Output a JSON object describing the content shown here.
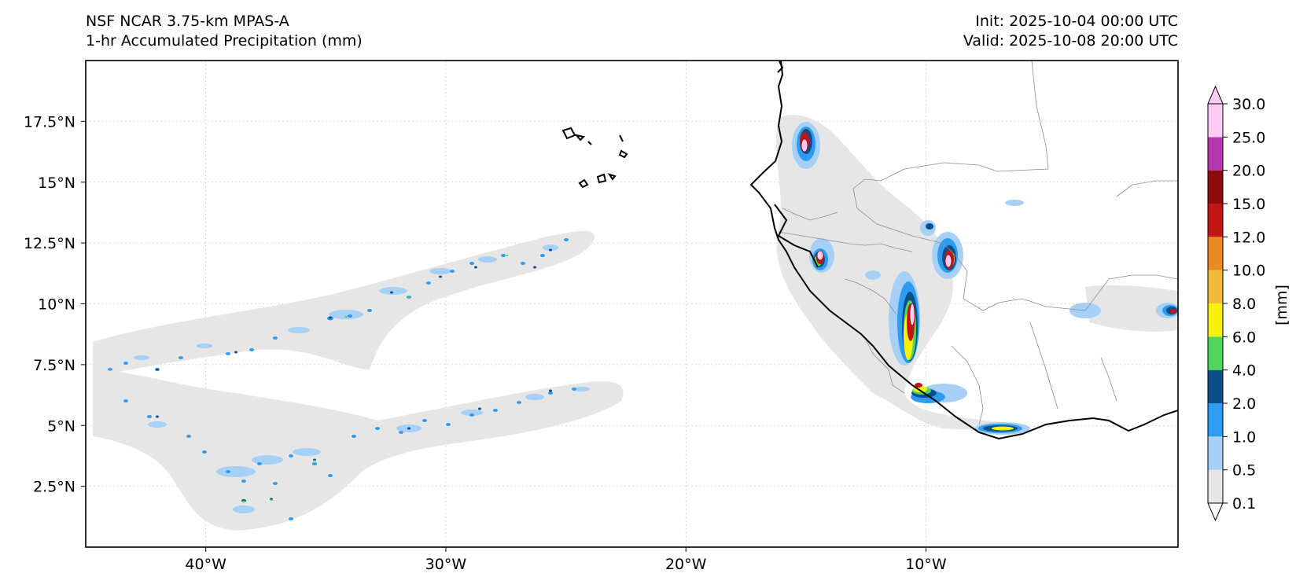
{
  "header": {
    "left_line1": "NSF NCAR 3.75-km MPAS-A",
    "left_line2": "1-hr Accumulated Precipitation (mm)",
    "right_line1": "Init: 2025-10-04 00:00 UTC",
    "right_line2": "Valid: 2025-10-08 20:00 UTC"
  },
  "map": {
    "lon_range": [
      -45,
      0.5
    ],
    "lat_range": [
      0,
      20
    ],
    "lon_ticks": [
      {
        "value": -40,
        "label": "40°W"
      },
      {
        "value": -30,
        "label": "30°W"
      },
      {
        "value": -20,
        "label": "20°W"
      },
      {
        "value": -10,
        "label": "10°W"
      }
    ],
    "lat_ticks": [
      {
        "value": 17.5,
        "label": "17.5°N"
      },
      {
        "value": 15,
        "label": "15°N"
      },
      {
        "value": 12.5,
        "label": "12.5°N"
      },
      {
        "value": 10,
        "label": "10°N"
      },
      {
        "value": 7.5,
        "label": "7.5°N"
      },
      {
        "value": 5,
        "label": "5°N"
      },
      {
        "value": 2.5,
        "label": "2.5°N"
      }
    ]
  },
  "colorbar": {
    "unit_label": "[mm]",
    "levels": [
      "0.1",
      "0.5",
      "1.0",
      "2.0",
      "4.0",
      "6.0",
      "8.0",
      "10.0",
      "12.0",
      "15.0",
      "20.0",
      "25.0",
      "30.0"
    ],
    "colors": [
      "#e6e6e6",
      "#a6d0f5",
      "#2e9cf0",
      "#0b4f8a",
      "#4fd65a",
      "#f6f20a",
      "#f2b93a",
      "#ea8a22",
      "#c21515",
      "#8a0c0c",
      "#b638b0",
      "#ffccf5"
    ]
  }
}
